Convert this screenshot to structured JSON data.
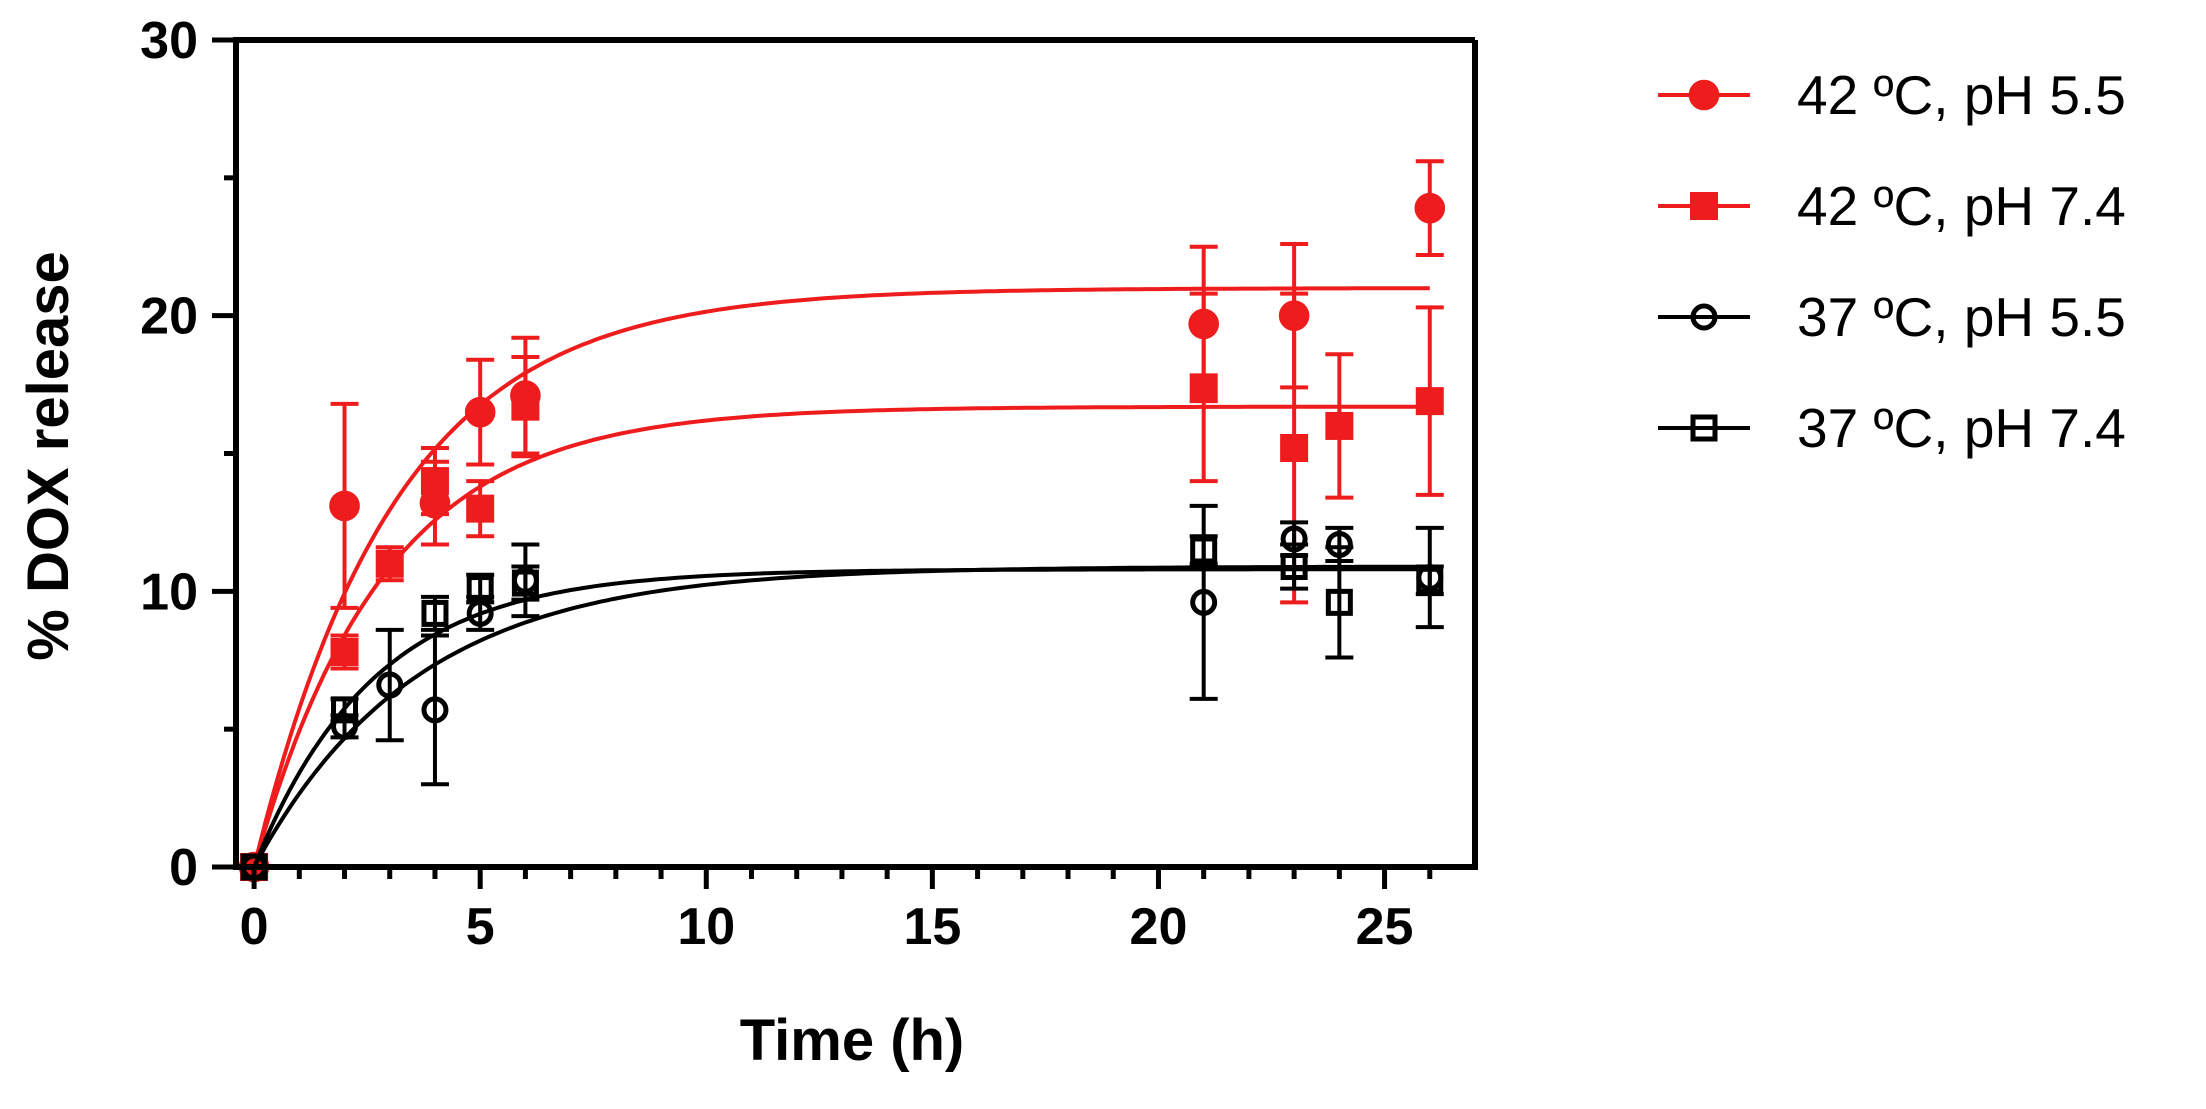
{
  "chart_data": {
    "type": "scatter",
    "title": "",
    "xlabel": "Time (h)",
    "ylabel": "% DOX release",
    "xlim": [
      -0.4,
      27
    ],
    "ylim": [
      0,
      30
    ],
    "xticks": [
      0,
      5,
      10,
      15,
      20,
      25
    ],
    "yticks": [
      0,
      10,
      20,
      30
    ],
    "xtick_labels": [
      "0",
      "5",
      "10",
      "15",
      "20",
      "25"
    ],
    "ytick_labels": [
      "0",
      "10",
      "20",
      "30"
    ],
    "grid": false,
    "legend_position": "right",
    "series": [
      {
        "name": "42 ºC, pH 5.5",
        "color": "#ee1c1c",
        "marker": "circle",
        "filled": true,
        "points": [
          {
            "x": 0,
            "y": 0,
            "err": 0
          },
          {
            "x": 2,
            "y": 13.1,
            "err": 3.7
          },
          {
            "x": 4,
            "y": 13.2,
            "err": 1.5
          },
          {
            "x": 5,
            "y": 16.5,
            "err": 1.9
          },
          {
            "x": 6,
            "y": 17.1,
            "err": 2.1
          },
          {
            "x": 21,
            "y": 19.7,
            "err": 2.8
          },
          {
            "x": 23,
            "y": 20.0,
            "err": 2.6
          },
          {
            "x": 26,
            "y": 23.9,
            "err": 1.7
          }
        ],
        "fit": {
          "plateau": 21.0,
          "k": 0.32
        }
      },
      {
        "name": "42 ºC, pH 7.4",
        "color": "#ee1c1c",
        "marker": "square",
        "filled": true,
        "points": [
          {
            "x": 0,
            "y": 0,
            "err": 0
          },
          {
            "x": 2,
            "y": 7.8,
            "err": 0.6
          },
          {
            "x": 3,
            "y": 11.0,
            "err": 0.6
          },
          {
            "x": 4,
            "y": 14.0,
            "err": 1.2
          },
          {
            "x": 5,
            "y": 13.0,
            "err": 1.0
          },
          {
            "x": 6,
            "y": 16.7,
            "err": 1.8
          },
          {
            "x": 21,
            "y": 17.4,
            "err": 3.4
          },
          {
            "x": 23,
            "y": 15.2,
            "err": 5.6
          },
          {
            "x": 24,
            "y": 16.0,
            "err": 2.6
          },
          {
            "x": 26,
            "y": 16.9,
            "err": 3.4
          }
        ],
        "fit": {
          "plateau": 16.7,
          "k": 0.35
        }
      },
      {
        "name": "37 ºC, pH 5.5",
        "color": "#000000",
        "marker": "circle",
        "filled": false,
        "points": [
          {
            "x": 0,
            "y": 0,
            "err": 0
          },
          {
            "x": 2,
            "y": 5.1,
            "err": 0.4
          },
          {
            "x": 3,
            "y": 6.6,
            "err": 2.0
          },
          {
            "x": 4,
            "y": 5.7,
            "err": 2.7
          },
          {
            "x": 5,
            "y": 9.2,
            "err": 0.6
          },
          {
            "x": 6,
            "y": 10.4,
            "err": 1.3
          },
          {
            "x": 21,
            "y": 9.6,
            "err": 3.5
          },
          {
            "x": 23,
            "y": 11.9,
            "err": 0.6
          },
          {
            "x": 24,
            "y": 11.7,
            "err": 0.6
          },
          {
            "x": 26,
            "y": 10.5,
            "err": 1.8
          }
        ],
        "fit": {
          "plateau": 10.9,
          "k": 0.28
        }
      },
      {
        "name": "37 ºC, pH 7.4",
        "color": "#000000",
        "marker": "square",
        "filled": false,
        "points": [
          {
            "x": 0,
            "y": 0,
            "err": 0
          },
          {
            "x": 2,
            "y": 5.7,
            "err": 0.4
          },
          {
            "x": 4,
            "y": 9.2,
            "err": 0.6
          },
          {
            "x": 5,
            "y": 10.1,
            "err": 0.5
          },
          {
            "x": 6,
            "y": 10.3,
            "err": 0.6
          },
          {
            "x": 21,
            "y": 11.5,
            "err": 0.5
          },
          {
            "x": 23,
            "y": 10.9,
            "err": 0.8
          },
          {
            "x": 24,
            "y": 9.6,
            "err": 2.0
          },
          {
            "x": 26,
            "y": 10.4,
            "err": 0.5
          }
        ],
        "fit": {
          "plateau": 10.8,
          "k": 0.38
        }
      }
    ]
  }
}
